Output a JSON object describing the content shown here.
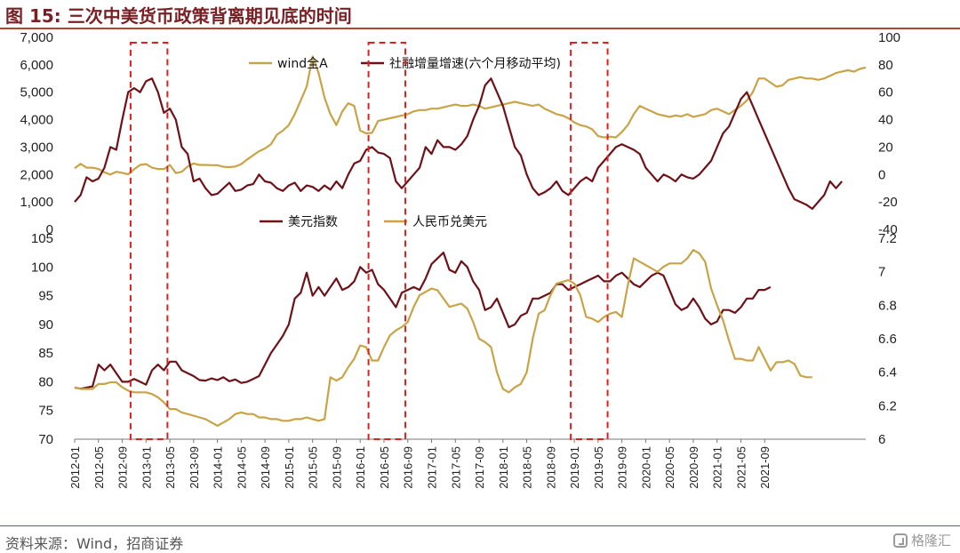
{
  "title": "图 15:  三次中美货币政策背离期见底的时间",
  "source": "资料来源：Wind，招商证券",
  "watermark": "格隆汇",
  "colors": {
    "wind": "#c8a447",
    "social": "#6e1218",
    "usd": "#6e1218",
    "cny": "#c8a447",
    "highlight": "#e0201f",
    "title": "#7a1f24"
  },
  "x_ticks": [
    "2012-01",
    "2012-05",
    "2012-09",
    "2013-01",
    "2013-05",
    "2013-09",
    "2014-01",
    "2014-05",
    "2014-09",
    "2015-01",
    "2015-05",
    "2015-09",
    "2016-01",
    "2016-05",
    "2016-09",
    "2017-01",
    "2017-05",
    "2017-09",
    "2018-01",
    "2018-05",
    "2018-09",
    "2019-01",
    "2019-05",
    "2019-09",
    "2020-01",
    "2020-05",
    "2020-09",
    "2021-01",
    "2021-05",
    "2021-09"
  ],
  "highlight_periods": [
    {
      "start": "2012-11",
      "end": "2013-04"
    },
    {
      "start": "2016-03",
      "end": "2016-08"
    },
    {
      "start": "2019-01",
      "end": "2019-06"
    }
  ],
  "chart_data": [
    {
      "type": "line",
      "panel": "top",
      "x_start": "2012-01",
      "legend_position": "top-center",
      "left_axis": {
        "ylim": [
          0,
          7000
        ],
        "ticks": [
          "0",
          "1,000",
          "2,000",
          "3,000",
          "4,000",
          "5,000",
          "6,000",
          "7,000"
        ]
      },
      "right_axis": {
        "ylim": [
          -40,
          100
        ],
        "ticks": [
          "-40",
          "-20",
          "0",
          "20",
          "40",
          "60",
          "80",
          "100"
        ]
      },
      "series": [
        {
          "name": "wind全A",
          "axis": "left",
          "color": "#c8a447",
          "values": [
            2230,
            2390,
            2250,
            2250,
            2200,
            2080,
            2000,
            2100,
            2060,
            2010,
            2190,
            2350,
            2380,
            2250,
            2200,
            2200,
            2350,
            2050,
            2100,
            2290,
            2400,
            2350,
            2350,
            2340,
            2340,
            2280,
            2270,
            2290,
            2380,
            2550,
            2700,
            2850,
            2950,
            3100,
            3450,
            3600,
            3800,
            4200,
            4700,
            5200,
            6300,
            5700,
            4800,
            4200,
            3800,
            4300,
            4600,
            4500,
            3600,
            3500,
            3520,
            3950,
            4000,
            4050,
            4100,
            4150,
            4200,
            4300,
            4350,
            4350,
            4400,
            4400,
            4450,
            4500,
            4550,
            4500,
            4500,
            4550,
            4500,
            4400,
            4450,
            4500,
            4550,
            4600,
            4650,
            4600,
            4550,
            4500,
            4550,
            4400,
            4300,
            4200,
            4150,
            4050,
            3900,
            3800,
            3750,
            3650,
            3400,
            3350,
            3380,
            3350,
            3550,
            3800,
            4200,
            4500,
            4400,
            4300,
            4200,
            4150,
            4100,
            4150,
            4120,
            4200,
            4100,
            4150,
            4200,
            4350,
            4400,
            4300,
            4200,
            4350,
            4500,
            4700,
            5000,
            5500,
            5500,
            5350,
            5200,
            5250,
            5450,
            5500,
            5550,
            5500,
            5500,
            5450,
            5500,
            5600,
            5700,
            5750,
            5800,
            5750,
            5850,
            5900
          ]
        },
        {
          "name": "社融增量增速(六个月移动平均)",
          "axis": "right",
          "color": "#6e1218",
          "values": [
            -20,
            -15,
            -2,
            -5,
            -3,
            5,
            20,
            18,
            40,
            60,
            63,
            60,
            68,
            70,
            60,
            45,
            48,
            40,
            20,
            15,
            -5,
            -3,
            -10,
            -15,
            -14,
            -10,
            -6,
            -12,
            -11,
            -8,
            -7,
            0,
            -5,
            -6,
            -10,
            -12,
            -8,
            -6,
            -12,
            -8,
            -9,
            -12,
            -8,
            -11,
            -5,
            -10,
            0,
            8,
            10,
            18,
            20,
            16,
            15,
            12,
            -5,
            -10,
            -5,
            0,
            5,
            20,
            15,
            25,
            20,
            20,
            18,
            22,
            28,
            40,
            50,
            65,
            70,
            60,
            50,
            35,
            20,
            14,
            0,
            -10,
            -15,
            -13,
            -10,
            -5,
            -12,
            -15,
            -10,
            -5,
            -2,
            -5,
            5,
            10,
            15,
            20,
            22,
            20,
            18,
            15,
            5,
            0,
            -5,
            0,
            -2,
            -5,
            0,
            -2,
            -3,
            0,
            5,
            10,
            20,
            30,
            35,
            45,
            55,
            60,
            50,
            40,
            30,
            20,
            10,
            0,
            -10,
            -18,
            -20,
            -22,
            -25,
            -20,
            -15,
            -5,
            -10,
            -5
          ],
          "note": ""
        }
      ]
    },
    {
      "type": "line",
      "panel": "bottom",
      "x_start": "2012-01",
      "legend_position": "top-center",
      "left_axis": {
        "ylim": [
          70,
          105
        ],
        "ticks": [
          "70",
          "75",
          "80",
          "85",
          "90",
          "95",
          "100",
          "105"
        ]
      },
      "right_axis": {
        "ylim": [
          6,
          7.2
        ],
        "ticks": [
          "6",
          "6.2",
          "6.4",
          "6.6",
          "6.8",
          "7",
          "7.2"
        ]
      },
      "series": [
        {
          "name": "美元指数",
          "axis": "left",
          "color": "#6e1218",
          "values": [
            79.0,
            78.8,
            79.0,
            79.2,
            83.0,
            82.0,
            83.0,
            81.5,
            80.0,
            80.0,
            80.5,
            80.0,
            79.5,
            82.0,
            83.0,
            82.0,
            83.5,
            83.5,
            82.0,
            81.5,
            81.0,
            80.3,
            80.2,
            80.6,
            80.3,
            80.8,
            80.1,
            80.4,
            79.8,
            80.0,
            80.5,
            81.0,
            83.0,
            85.0,
            86.5,
            88.0,
            90.0,
            94.5,
            95.5,
            99.0,
            95.0,
            96.5,
            95.0,
            96.5,
            98.0,
            96.0,
            96.5,
            97.5,
            100.0,
            99.0,
            99.5,
            97.0,
            96.0,
            94.5,
            93.0,
            95.5,
            96.0,
            96.5,
            96.0,
            98.0,
            100.5,
            101.5,
            102.5,
            99.5,
            99.0,
            101.0,
            100.0,
            97.5,
            96.0,
            92.5,
            93.0,
            94.5,
            92.0,
            89.5,
            90.0,
            91.5,
            92.0,
            94.5,
            94.5,
            95.0,
            95.5,
            97.0,
            97.0,
            96.0,
            96.5,
            97.0,
            97.5,
            98.0,
            98.5,
            97.5,
            97.5,
            98.5,
            99.0,
            98.0,
            97.0,
            96.5,
            97.5,
            98.5,
            99.0,
            98.5,
            96.0,
            93.5,
            92.5,
            93.0,
            94.5,
            93.0,
            91.0,
            90.0,
            90.5,
            92.5,
            92.5,
            92.0,
            93.0,
            94.5,
            94.5,
            96.0,
            96.0,
            96.5
          ]
        },
        {
          "name": "人民币兑美元",
          "axis": "right",
          "color": "#c8a447",
          "values": [
            6.31,
            6.3,
            6.3,
            6.3,
            6.33,
            6.33,
            6.34,
            6.34,
            6.31,
            6.29,
            6.28,
            6.28,
            6.28,
            6.27,
            6.25,
            6.22,
            6.18,
            6.18,
            6.16,
            6.15,
            6.14,
            6.13,
            6.12,
            6.1,
            6.08,
            6.1,
            6.12,
            6.15,
            6.16,
            6.15,
            6.15,
            6.13,
            6.13,
            6.12,
            6.12,
            6.11,
            6.11,
            6.12,
            6.12,
            6.13,
            6.12,
            6.11,
            6.12,
            6.37,
            6.35,
            6.37,
            6.43,
            6.48,
            6.56,
            6.55,
            6.47,
            6.47,
            6.55,
            6.62,
            6.65,
            6.67,
            6.7,
            6.79,
            6.86,
            6.88,
            6.9,
            6.89,
            6.84,
            6.79,
            6.8,
            6.81,
            6.78,
            6.7,
            6.6,
            6.58,
            6.55,
            6.4,
            6.3,
            6.28,
            6.31,
            6.33,
            6.4,
            6.6,
            6.75,
            6.77,
            6.86,
            6.93,
            6.94,
            6.95,
            6.93,
            6.86,
            6.73,
            6.72,
            6.7,
            6.73,
            6.75,
            6.76,
            6.73,
            6.92,
            7.08,
            7.06,
            7.04,
            7.02,
            7.0,
            7.03,
            7.05,
            7.05,
            7.05,
            7.08,
            7.13,
            7.11,
            7.06,
            6.9,
            6.8,
            6.71,
            6.59,
            6.48,
            6.48,
            6.47,
            6.47,
            6.55,
            6.48,
            6.41,
            6.46,
            6.46,
            6.47,
            6.45,
            6.38,
            6.37,
            6.37
          ]
        }
      ]
    }
  ]
}
